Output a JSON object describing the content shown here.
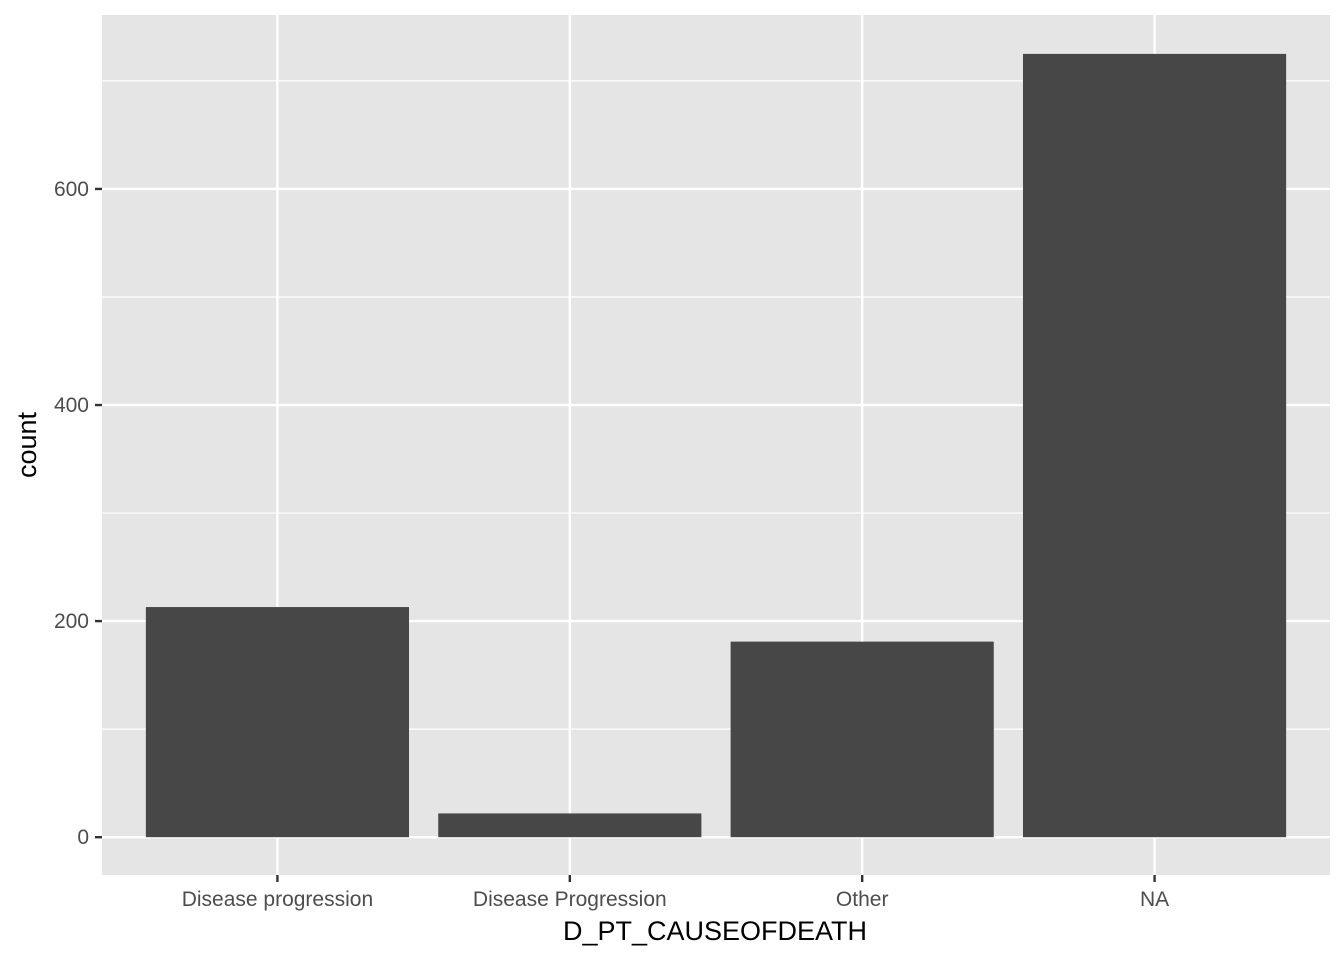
{
  "chart_data": {
    "type": "bar",
    "categories": [
      "Disease progression",
      "Disease Progression",
      "Other",
      "NA"
    ],
    "values": [
      213,
      22,
      181,
      725
    ],
    "title": "",
    "xlabel": "D_PT_CAUSEOFDEATH",
    "ylabel": "count",
    "ylim": [
      -35,
      761
    ],
    "yticks": [
      0,
      200,
      400,
      600
    ],
    "yticks_minor": [
      100,
      300,
      500,
      700
    ],
    "grid": true,
    "legend": "none",
    "colors": {
      "panel_background": "#e5e5e5",
      "grid": "#ffffff",
      "bar_fill": "#474747",
      "tick_label": "#4d4d4d",
      "axis_title": "#000000"
    }
  }
}
